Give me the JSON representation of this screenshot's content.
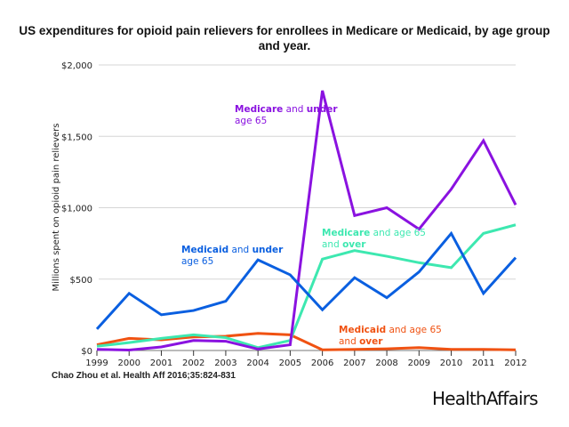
{
  "title": "US expenditures for opioid pain relievers for enrollees in Medicare or Medicaid, by age group and year.",
  "citation": "Chao Zhou et al. Health Aff 2016;35:824-831",
  "brand": "HealthAffairs",
  "chart_data": {
    "type": "line",
    "title": "US expenditures for opioid pain relievers for enrollees in Medicare or Medicaid, by age group and year.",
    "xlabel": "",
    "ylabel": "Millions spent on opioid pain relievers",
    "x": [
      1999,
      2000,
      2001,
      2002,
      2003,
      2004,
      2005,
      2006,
      2007,
      2008,
      2009,
      2010,
      2011,
      2012
    ],
    "ylim": [
      0,
      2000
    ],
    "yticks": [
      0,
      500,
      1000,
      1500,
      2000
    ],
    "ytick_labels": [
      "$0",
      "$500",
      "$1,000",
      "$1,500",
      "$2,000"
    ],
    "grid": true,
    "legend": "inline annotations",
    "series": [
      {
        "name": "Medicare and under age 65",
        "color": "#8a12e0",
        "label_parts": [
          [
            "Medicare",
            true
          ],
          [
            " and ",
            false
          ],
          [
            "under",
            true
          ],
          [
            "|age 65",
            false
          ]
        ],
        "values": [
          8,
          3,
          25,
          70,
          65,
          10,
          40,
          1820,
          945,
          1000,
          850,
          1130,
          1470,
          1020
        ]
      },
      {
        "name": "Medicaid and under age 65",
        "color": "#0a5fe0",
        "label_parts": [
          [
            "Medicaid",
            true
          ],
          [
            " and ",
            false
          ],
          [
            "under",
            true
          ],
          [
            "|age 65",
            false
          ]
        ],
        "values": [
          150,
          400,
          250,
          280,
          345,
          635,
          530,
          285,
          510,
          370,
          550,
          820,
          400,
          650
        ]
      },
      {
        "name": "Medicare and age 65 and over",
        "color": "#3de8b0",
        "label_parts": [
          [
            "Medicare",
            true
          ],
          [
            " and age 65",
            false
          ],
          [
            "|and ",
            false
          ],
          [
            "over",
            true
          ]
        ],
        "values": [
          30,
          55,
          85,
          110,
          90,
          20,
          70,
          640,
          700,
          660,
          615,
          580,
          820,
          880
        ]
      },
      {
        "name": "Medicaid and age 65 and over",
        "color": "#f05212",
        "label_parts": [
          [
            "Medicaid",
            true
          ],
          [
            " and age 65",
            false
          ],
          [
            "|and ",
            false
          ],
          [
            "over",
            true
          ]
        ],
        "values": [
          40,
          85,
          75,
          95,
          100,
          120,
          110,
          5,
          8,
          12,
          20,
          8,
          8,
          5
        ]
      }
    ]
  }
}
